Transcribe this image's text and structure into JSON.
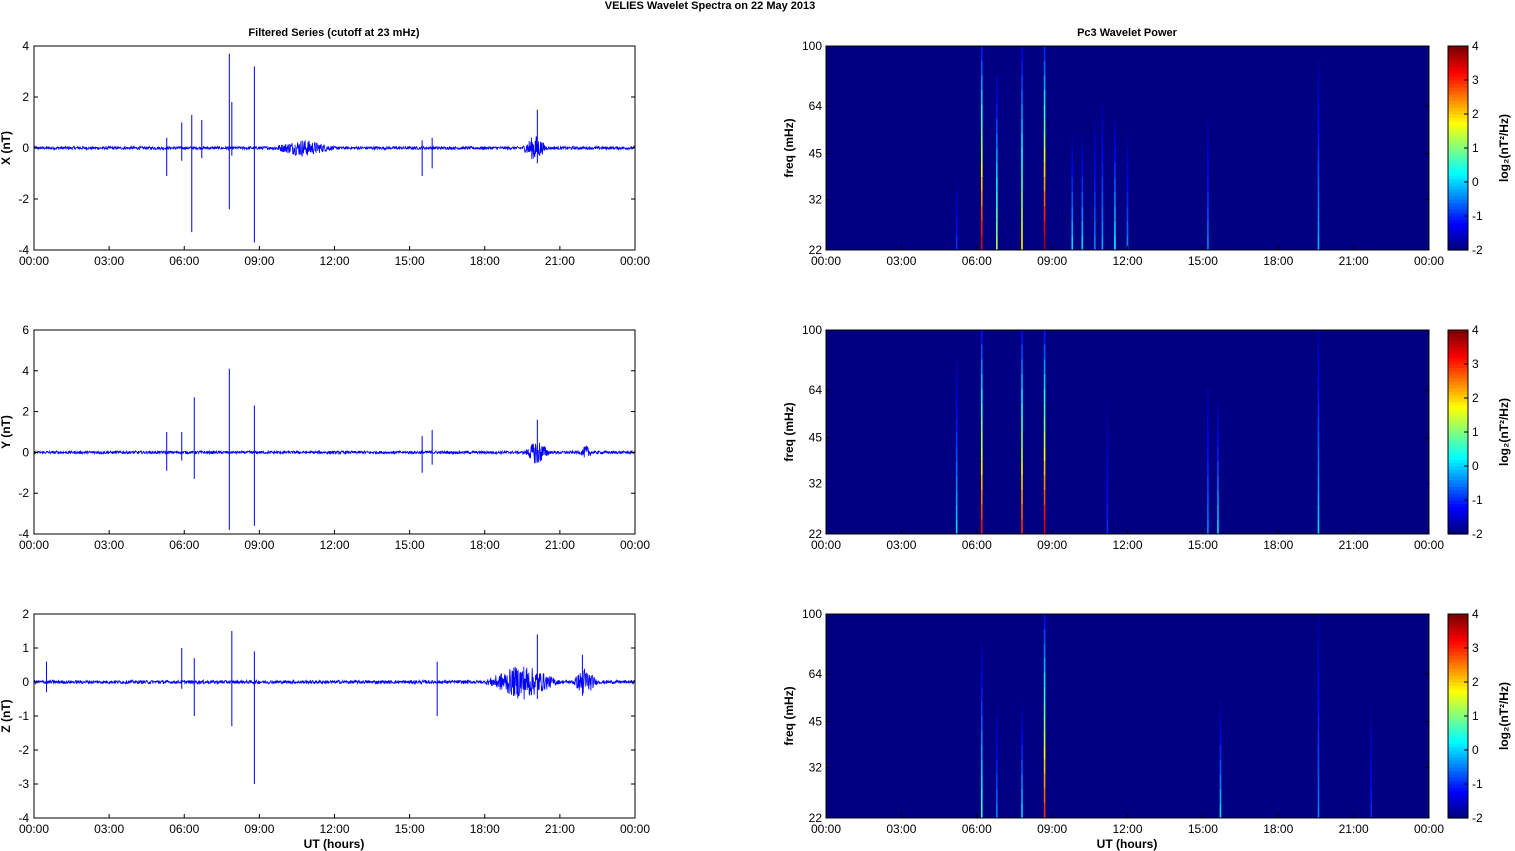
{
  "title": "VELIES Wavelet Spectra on 22 May      2013",
  "left_title": "Filtered Series (cutoff at 23 mHz)",
  "right_title": "Pc3 Wavelet Power",
  "xlabel": "UT (hours)",
  "colors": {
    "trace": "#0000ff",
    "background": "#000080"
  },
  "chart_data": [
    {
      "type": "line",
      "panel": "X",
      "ylabel": "X (nT)",
      "ylim": [
        -4,
        4
      ],
      "yticks": [
        "-4",
        "-2",
        "0",
        "2",
        "4"
      ],
      "xlim": [
        0,
        24
      ],
      "xticks": [
        "00:00",
        "03:00",
        "06:00",
        "09:00",
        "12:00",
        "15:00",
        "18:00",
        "21:00",
        "00:00"
      ],
      "spikes": [
        [
          5.3,
          0.4,
          -1.1
        ],
        [
          5.9,
          1.0,
          -0.5
        ],
        [
          6.3,
          1.3,
          -3.3
        ],
        [
          6.7,
          1.1,
          -0.4
        ],
        [
          7.8,
          3.7,
          -2.4
        ],
        [
          7.9,
          1.8,
          -0.3
        ],
        [
          8.8,
          3.2,
          -3.7
        ],
        [
          15.5,
          0.3,
          -1.1
        ],
        [
          15.9,
          0.4,
          -0.8
        ],
        [
          20.1,
          1.5,
          -0.6
        ]
      ],
      "bursts": [
        [
          9.5,
          12.0,
          0.3
        ],
        [
          19.5,
          20.5,
          0.5
        ]
      ],
      "noise": 0.06
    },
    {
      "type": "line",
      "panel": "Y",
      "ylabel": "Y (nT)",
      "ylim": [
        -4,
        6
      ],
      "yticks": [
        "-4",
        "-2",
        "0",
        "2",
        "4",
        "6"
      ],
      "xlim": [
        0,
        24
      ],
      "xticks": [
        "00:00",
        "03:00",
        "06:00",
        "09:00",
        "12:00",
        "15:00",
        "18:00",
        "21:00",
        "00:00"
      ],
      "spikes": [
        [
          5.3,
          1.0,
          -0.9
        ],
        [
          5.9,
          1.0,
          -0.4
        ],
        [
          6.4,
          2.7,
          -1.3
        ],
        [
          7.8,
          4.1,
          -3.8
        ],
        [
          8.8,
          2.3,
          -3.6
        ],
        [
          15.5,
          0.8,
          -1.0
        ],
        [
          15.9,
          1.1,
          -0.6
        ],
        [
          20.1,
          1.6,
          -0.5
        ]
      ],
      "bursts": [
        [
          19.6,
          20.6,
          0.6
        ],
        [
          21.8,
          22.3,
          0.3
        ]
      ],
      "noise": 0.07
    },
    {
      "type": "line",
      "panel": "Z",
      "ylabel": "Z (nT)",
      "ylim": [
        -4,
        2
      ],
      "yticks": [
        "-4",
        "-3",
        "-2",
        "-1",
        "0",
        "1",
        "2"
      ],
      "xlim": [
        0,
        24
      ],
      "xticks": [
        "00:00",
        "03:00",
        "06:00",
        "09:00",
        "12:00",
        "15:00",
        "18:00",
        "21:00",
        "00:00"
      ],
      "spikes": [
        [
          0.5,
          0.6,
          -0.3
        ],
        [
          5.9,
          1.0,
          -0.2
        ],
        [
          6.4,
          0.7,
          -1.0
        ],
        [
          7.9,
          1.5,
          -1.3
        ],
        [
          8.8,
          0.9,
          -3.0
        ],
        [
          16.1,
          0.6,
          -1.0
        ],
        [
          20.1,
          1.4,
          -0.5
        ],
        [
          21.9,
          0.8,
          -0.4
        ]
      ],
      "bursts": [
        [
          18.0,
          21.0,
          0.5
        ],
        [
          21.5,
          22.5,
          0.4
        ]
      ],
      "noise": 0.05
    },
    {
      "type": "heatmap",
      "panel": "X",
      "ylabel": "freq (mHz)",
      "yticks": [
        "22",
        "32",
        "45",
        "64",
        "100"
      ],
      "colorbar_label": "log₂(nT²/Hz)",
      "clim": [
        -2,
        4
      ],
      "cticks": [
        "-2",
        "-1",
        "0",
        "1",
        "2",
        "3",
        "4"
      ],
      "xticks": [
        "00:00",
        "03:00",
        "06:00",
        "09:00",
        "12:00",
        "15:00",
        "18:00",
        "21:00",
        "00:00"
      ],
      "streaks": [
        [
          5.2,
          0.3,
          -1.0
        ],
        [
          6.2,
          1.0,
          3.5
        ],
        [
          6.8,
          0.8,
          1.2
        ],
        [
          7.8,
          1.0,
          1.8
        ],
        [
          8.7,
          1.0,
          3.8
        ],
        [
          9.8,
          0.5,
          0.0
        ],
        [
          10.2,
          0.5,
          0.0
        ],
        [
          10.7,
          0.6,
          -0.5
        ],
        [
          11.0,
          0.7,
          -0.3
        ],
        [
          11.5,
          0.6,
          0.2
        ],
        [
          12.0,
          0.5,
          -0.5
        ],
        [
          15.2,
          0.6,
          -0.5
        ],
        [
          19.6,
          0.9,
          -0.2
        ]
      ]
    },
    {
      "type": "heatmap",
      "panel": "Y",
      "ylabel": "freq (mHz)",
      "yticks": [
        "22",
        "32",
        "45",
        "64",
        "100"
      ],
      "colorbar_label": "log₂(nT²/Hz)",
      "clim": [
        -2,
        4
      ],
      "cticks": [
        "-2",
        "-1",
        "0",
        "1",
        "2",
        "3",
        "4"
      ],
      "xticks": [
        "00:00",
        "03:00",
        "06:00",
        "09:00",
        "12:00",
        "15:00",
        "18:00",
        "21:00",
        "00:00"
      ],
      "streaks": [
        [
          5.2,
          0.8,
          0.0
        ],
        [
          6.2,
          1.0,
          3.2
        ],
        [
          7.8,
          1.0,
          3.0
        ],
        [
          8.7,
          1.0,
          3.5
        ],
        [
          11.2,
          0.6,
          -1.0
        ],
        [
          15.2,
          0.7,
          -0.5
        ],
        [
          15.6,
          0.6,
          0.0
        ],
        [
          19.6,
          1.0,
          0.0
        ]
      ]
    },
    {
      "type": "heatmap",
      "panel": "Z",
      "ylabel": "freq (mHz)",
      "yticks": [
        "22",
        "32",
        "45",
        "64",
        "100"
      ],
      "colorbar_label": "log₂(nT²/Hz)",
      "clim": [
        -2,
        4
      ],
      "cticks": [
        "-2",
        "-1",
        "0",
        "1",
        "2",
        "3",
        "4"
      ],
      "xticks": [
        "00:00",
        "03:00",
        "06:00",
        "09:00",
        "12:00",
        "15:00",
        "18:00",
        "21:00",
        "00:00"
      ],
      "streaks": [
        [
          6.2,
          0.8,
          0.5
        ],
        [
          6.8,
          0.5,
          -0.5
        ],
        [
          7.8,
          0.5,
          0.0
        ],
        [
          8.7,
          1.0,
          3.0
        ],
        [
          15.7,
          0.5,
          0.0
        ],
        [
          19.6,
          1.0,
          -0.5
        ],
        [
          21.7,
          0.5,
          -1.0
        ]
      ]
    }
  ]
}
